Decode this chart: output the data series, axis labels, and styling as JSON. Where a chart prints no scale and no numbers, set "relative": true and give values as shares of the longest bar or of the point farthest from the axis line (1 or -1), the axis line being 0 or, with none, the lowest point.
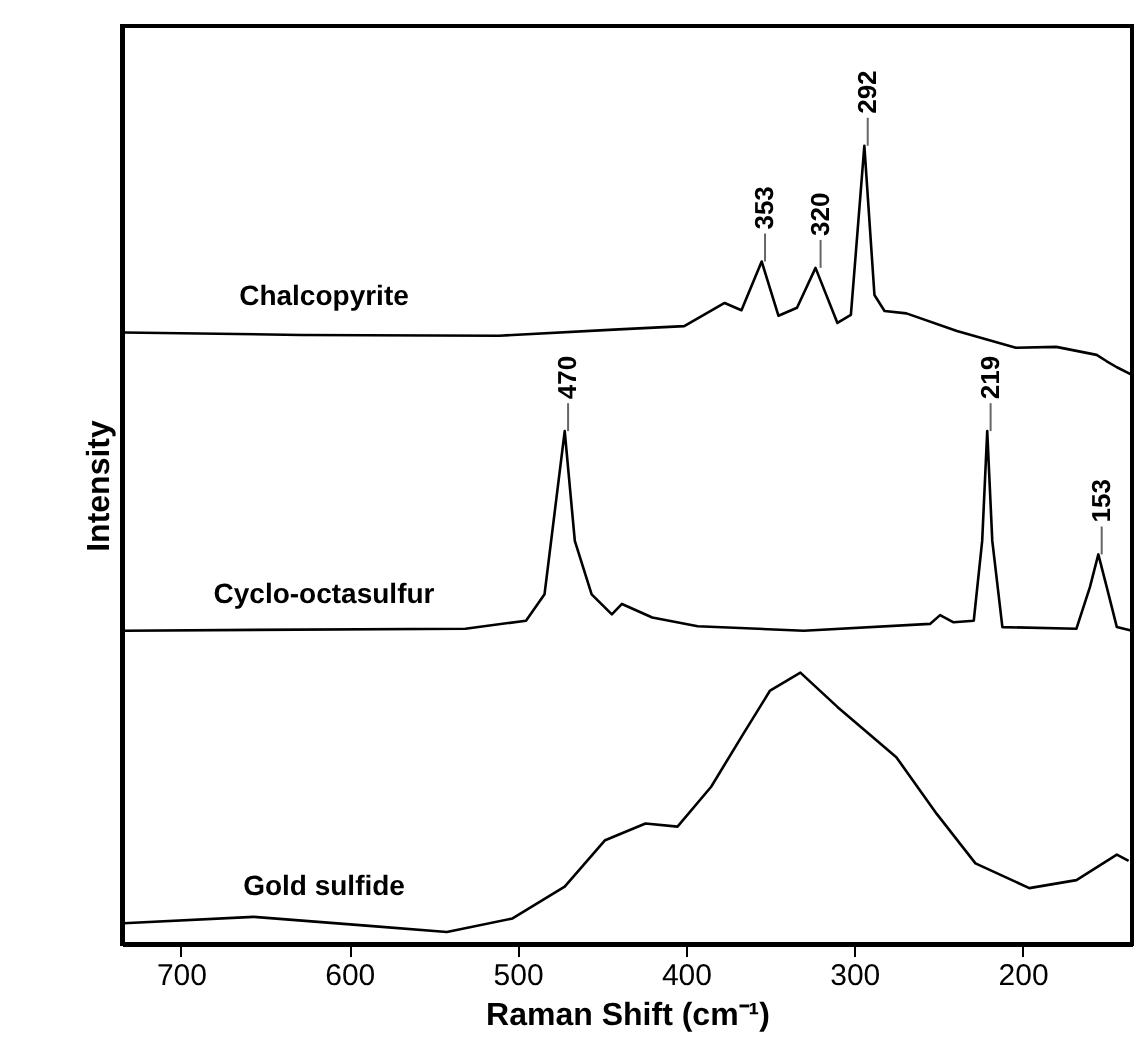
{
  "chart_data": {
    "type": "line",
    "relative": true,
    "xlabel": "Raman Shift (cm⁻¹)",
    "ylabel": "Intensity",
    "xlim": [
      735,
      135
    ],
    "xticks": [
      700,
      600,
      500,
      400,
      300,
      200
    ],
    "series": [
      {
        "name": "Chalcopyrite",
        "color": "#000000",
        "x": [
          734,
          629,
          511,
          440,
          401,
          377,
          367,
          355,
          345,
          334,
          323,
          310,
          302,
          294,
          288,
          282,
          269,
          239,
          204,
          180,
          156,
          150,
          144,
          135
        ],
        "values": [
          0.766,
          0.763,
          0.762,
          0.77,
          0.774,
          0.803,
          0.794,
          0.855,
          0.787,
          0.797,
          0.847,
          0.778,
          0.788,
          1.0,
          0.813,
          0.793,
          0.79,
          0.768,
          0.747,
          0.748,
          0.738,
          0.73,
          0.7225,
          0.713
        ]
      },
      {
        "name": "Cyclo-octasulfur",
        "color": "#000000",
        "x": [
          734,
          531,
          495,
          484,
          472,
          466,
          456,
          444,
          438,
          420,
          393,
          330,
          255,
          249,
          241,
          229,
          224,
          221,
          218,
          212,
          168,
          160,
          155,
          150,
          144,
          135
        ],
        "values": [
          0.3925,
          0.395,
          0.405,
          0.438,
          0.6425,
          0.505,
          0.438,
          0.413,
          0.426,
          0.409,
          0.398,
          0.3925,
          0.401,
          0.412,
          0.403,
          0.405,
          0.505,
          0.6425,
          0.505,
          0.397,
          0.395,
          0.447,
          0.488,
          0.447,
          0.397,
          0.3925
        ]
      },
      {
        "name": "Gold sulfide",
        "color": "#000000",
        "x": [
          734,
          657,
          590,
          542,
          503,
          472,
          448,
          424,
          405,
          385,
          366,
          350,
          332,
          310,
          275,
          251,
          228,
          196,
          168,
          144,
          137
        ],
        "values": [
          0.026,
          0.034,
          0.023,
          0.015,
          0.032,
          0.072,
          0.13,
          0.151,
          0.147,
          0.197,
          0.263,
          0.3175,
          0.34,
          0.297,
          0.234,
          0.163,
          0.101,
          0.07,
          0.08,
          0.112,
          0.104
        ]
      }
    ],
    "annotations": [
      {
        "text": "353",
        "x": 353,
        "y": 0.855
      },
      {
        "text": "320",
        "x": 320,
        "y": 0.847
      },
      {
        "text": "292",
        "x": 292,
        "y": 1.0
      },
      {
        "text": "470",
        "x": 470,
        "y": 0.6425
      },
      {
        "text": "219",
        "x": 219,
        "y": 0.6425
      },
      {
        "text": "153",
        "x": 153,
        "y": 0.488
      }
    ]
  }
}
